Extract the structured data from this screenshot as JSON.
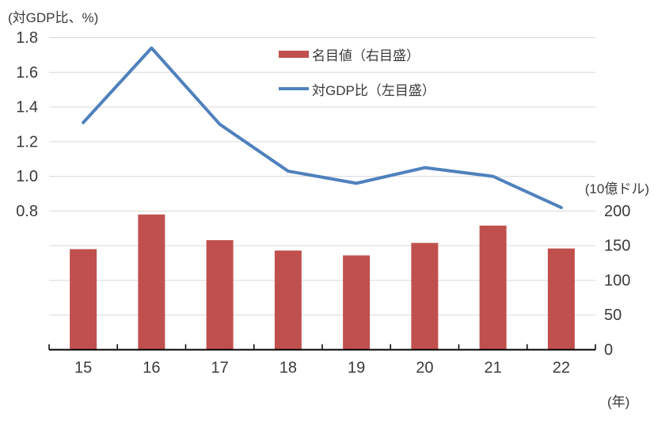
{
  "chart_data": {
    "type": "combo-bar-line",
    "categories": [
      "15",
      "16",
      "17",
      "18",
      "19",
      "20",
      "21",
      "22"
    ],
    "series": [
      {
        "name": "名目値（右目盛）",
        "type": "bar",
        "axis": "right",
        "values": [
          145,
          195,
          158,
          143,
          136,
          154,
          179,
          146
        ],
        "color": "#C0504D"
      },
      {
        "name": "対GDP比（左目盛）",
        "type": "line",
        "axis": "left",
        "values": [
          1.31,
          1.74,
          1.3,
          1.03,
          0.96,
          1.05,
          1.0,
          0.82
        ],
        "color": "#4F81BD"
      }
    ],
    "left_axis": {
      "title": "(対GDP比、%)",
      "min": 0,
      "max": 1.8,
      "gridline_step": 0.2,
      "tick_labels": [
        "1.8",
        "1.6",
        "1.4",
        "1.2",
        "1.0",
        "0.8"
      ],
      "tick_values": [
        1.8,
        1.6,
        1.4,
        1.2,
        1.0,
        0.8
      ]
    },
    "right_axis": {
      "title": "(10億ドル)",
      "min": 0,
      "max": 450,
      "tick_labels": [
        "200",
        "150",
        "100",
        "50",
        "0"
      ],
      "tick_values": [
        200,
        150,
        100,
        50,
        0
      ]
    },
    "x_axis": {
      "title": "(年)",
      "labels": [
        "15",
        "16",
        "17",
        "18",
        "19",
        "20",
        "21",
        "22"
      ]
    },
    "legend": [
      {
        "label": "名目値（右目盛）",
        "swatch": "bar",
        "color": "#C0504D"
      },
      {
        "label": "対GDP比（左目盛）",
        "swatch": "line",
        "color": "#4F81BD"
      }
    ],
    "grid": true,
    "legend_position": "top-center",
    "colors": {
      "gridline": "#D9D9D9",
      "axis_line": "#000000",
      "text": "#3a3a3a",
      "background": "#ffffff"
    }
  }
}
